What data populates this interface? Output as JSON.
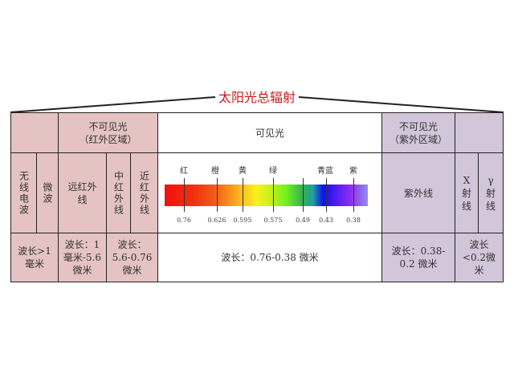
{
  "title": "太阳光总辐射",
  "infrared": {
    "header": "不可见光\n（红外区域）",
    "radio": "无线电波",
    "microwave": "微波",
    "far_ir": "远红外线",
    "mid_ir": "中红外线",
    "near_ir": "近红外线",
    "wl_radio_micro": "波长>1毫米",
    "wl_far": "波长：1毫米-5.6微米",
    "wl_mid_near": "波长：5.6-0.76微米"
  },
  "visible": {
    "header": "可见光",
    "wavelength": "波长：0.76-0.38 微米",
    "color_labels": [
      "红",
      "橙",
      "黄",
      "绿",
      "青蓝",
      "紫"
    ],
    "values": [
      "0.76",
      "0.626",
      "0.595",
      "0.575",
      "0.49",
      "0.43",
      "0.38"
    ]
  },
  "ultraviolet": {
    "header": "不可见光\n（紫外区域）",
    "uv": "紫外线",
    "xray": "X射线",
    "gamma": "γ射线",
    "wl_uv": "波长：0.38-0.2 微米",
    "wl_xg": "波长<0.2微米"
  },
  "colors": {
    "infrared_fill": "#e6c3c3",
    "ultraviolet_fill": "#d3c6db",
    "title": "#d01818"
  }
}
